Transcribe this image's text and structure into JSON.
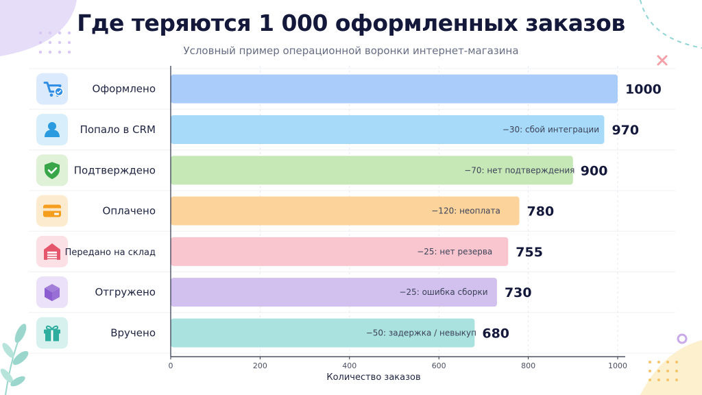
{
  "title": "Где теряются 1 000 оформленных заказов",
  "subtitle": "Условный пример операционной воронки интернет-магазина",
  "chart_data": {
    "type": "bar",
    "orientation": "horizontal",
    "xlabel": "Количество заказов",
    "xlim": [
      0,
      1000
    ],
    "xticks": [
      0,
      200,
      400,
      600,
      800,
      1000
    ],
    "grid": true,
    "rows": [
      {
        "label": "Оформлено",
        "value": 1000,
        "value_label": "1000",
        "note": "",
        "color": "#a9ccfa",
        "icon": "cart-check-icon",
        "icon_color": "#2f8de4",
        "icon_bg": "#dceafe"
      },
      {
        "label": "Попало в CRM",
        "value": 970,
        "value_label": "970",
        "note": "−30: сбой интеграции",
        "color": "#a7daf9",
        "icon": "user-icon",
        "icon_color": "#2b9be0",
        "icon_bg": "#d8eefb"
      },
      {
        "label": "Подтверждено",
        "value": 900,
        "value_label": "900",
        "note": "−70: нет подтверждения",
        "color": "#c6e7b6",
        "icon": "shield-check-icon",
        "icon_color": "#3aa64a",
        "icon_bg": "#dff2d8"
      },
      {
        "label": "Оплачено",
        "value": 780,
        "value_label": "780",
        "note": "−120: неоплата",
        "color": "#fcd49b",
        "icon": "credit-card-icon",
        "icon_color": "#f59e1d",
        "icon_bg": "#fdebd0"
      },
      {
        "label": "Передано на склад",
        "value": 755,
        "value_label": "755",
        "note": "−25: нет резерва",
        "color": "#f9c6cf",
        "icon": "warehouse-icon",
        "icon_color": "#e5566c",
        "icon_bg": "#fbe0e5"
      },
      {
        "label": "Отгружено",
        "value": 730,
        "value_label": "730",
        "note": "−25: ошибка сборки",
        "color": "#d2c1ee",
        "icon": "box-icon",
        "icon_color": "#8a5ccf",
        "icon_bg": "#ebe1f8"
      },
      {
        "label": "Вручено",
        "value": 680,
        "value_label": "680",
        "note": "−50: задержка / невыкуп",
        "color": "#a9e2de",
        "icon": "gift-icon",
        "icon_color": "#2fae9f",
        "icon_bg": "#d6f1ee"
      }
    ]
  }
}
